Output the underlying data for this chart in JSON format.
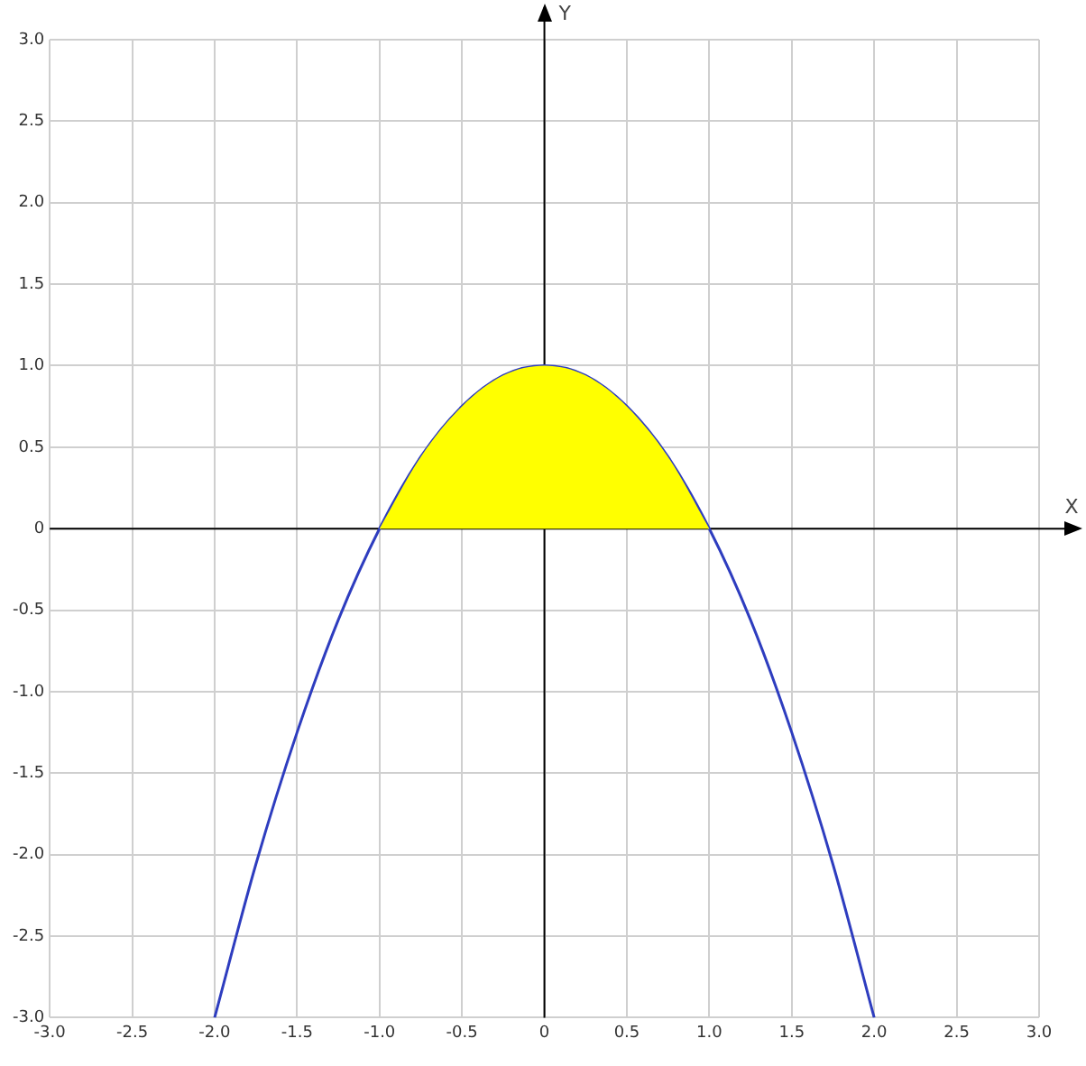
{
  "chart_data": {
    "type": "line",
    "xlabel": "X",
    "ylabel": "Y",
    "xlim": [
      -3,
      3
    ],
    "ylim": [
      -3,
      3
    ],
    "xticks": [
      {
        "value": -3,
        "label": "-3.0"
      },
      -2.5,
      {
        "value": -2,
        "label": "-2.0"
      },
      -1.5,
      {
        "value": -1,
        "label": "-1.0"
      },
      -0.5,
      0,
      0.5,
      {
        "value": 1,
        "label": "1.0"
      },
      1.5,
      {
        "value": 2,
        "label": "2.0"
      },
      2.5,
      {
        "value": 3,
        "label": "3.0"
      }
    ],
    "yticks": [
      {
        "value": -3,
        "label": "-3.0"
      },
      -2.5,
      {
        "value": -2,
        "label": "-2.0"
      },
      -1.5,
      {
        "value": -1,
        "label": "-1.0"
      },
      -0.5,
      0,
      0.5,
      {
        "value": 1,
        "label": "1.0"
      },
      1.5,
      {
        "value": 2,
        "label": "2.0"
      },
      2.5,
      {
        "value": 3,
        "label": "3.0"
      }
    ],
    "grid": true,
    "marker": "none",
    "series": [
      {
        "type": "area",
        "color": "#ffff00",
        "x": [
          -1,
          -0.75,
          -0.5,
          -0.25,
          0,
          0.25,
          0.5,
          0.75,
          1
        ],
        "values": [
          0,
          0.44,
          0.75,
          0.94,
          1,
          0.94,
          0.75,
          0.44,
          0
        ]
      },
      {
        "type": "line",
        "color": "#2e3dbf",
        "x": [
          -2,
          -1.75,
          -1.5,
          -1.25,
          -1,
          -0.75,
          -0.5,
          -0.25,
          0,
          0.25,
          0.5,
          0.75,
          1,
          1.25,
          1.5,
          1.75,
          2
        ],
        "values": [
          -3,
          -2.06,
          -1.25,
          -0.56,
          0,
          0.44,
          0.75,
          0.94,
          1,
          0.94,
          0.75,
          0.44,
          0,
          -0.56,
          -1.25,
          -2.06,
          -3
        ]
      }
    ]
  }
}
